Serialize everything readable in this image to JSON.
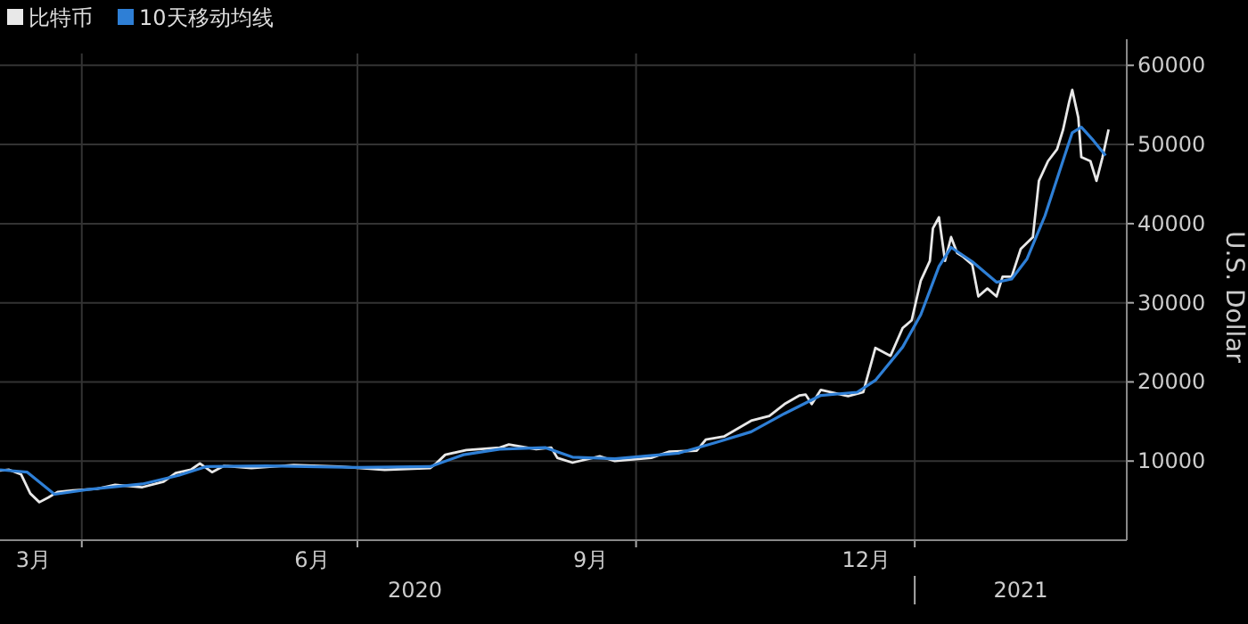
{
  "chart_data": {
    "type": "line",
    "ylabel": "U.S. Dollar",
    "legend": "top left",
    "grid": true,
    "xlim": [
      "2020-03-05",
      "2021-03-12"
    ],
    "ylim": [
      0,
      61500
    ],
    "xticks": [
      {
        "value": "2020-03-16",
        "label": "3月"
      },
      {
        "value": "2020-04-01",
        "label": null
      },
      {
        "value": "2020-06-16",
        "label": "6月"
      },
      {
        "value": "2020-07-01",
        "label": null
      },
      {
        "value": "2020-09-16",
        "label": "9月"
      },
      {
        "value": "2020-10-01",
        "label": null
      },
      {
        "value": "2020-12-16",
        "label": "12月"
      },
      {
        "value": "2021-01-01",
        "label": null
      }
    ],
    "x2lim": [
      "2020-03-05",
      "2021-03-12"
    ],
    "x2ticks": [
      {
        "value": "2020-07-20",
        "label": "2020"
      },
      {
        "value": "2021-01-01",
        "label": null
      },
      {
        "value": "2021-02-05",
        "label": "2021"
      }
    ],
    "yticks": [
      10000,
      20000,
      30000,
      40000,
      50000,
      60000
    ],
    "series": [
      {
        "name": "比特币",
        "color": "#e8e8e8",
        "x": [
          "2020-03-05",
          "2020-03-08",
          "2020-03-12",
          "2020-03-15",
          "2020-03-18",
          "2020-03-21",
          "2020-03-24",
          "2020-03-29",
          "2020-04-06",
          "2020-04-12",
          "2020-04-21",
          "2020-04-28",
          "2020-05-02",
          "2020-05-07",
          "2020-05-10",
          "2020-05-14",
          "2020-05-18",
          "2020-05-27",
          "2020-06-10",
          "2020-06-25",
          "2020-07-10",
          "2020-07-25",
          "2020-07-27",
          "2020-07-30",
          "2020-08-06",
          "2020-08-17",
          "2020-08-20",
          "2020-08-29",
          "2020-09-03",
          "2020-09-05",
          "2020-09-10",
          "2020-09-19",
          "2020-09-24",
          "2020-10-06",
          "2020-10-12",
          "2020-10-21",
          "2020-10-24",
          "2020-10-30",
          "2020-11-08",
          "2020-11-14",
          "2020-11-19",
          "2020-11-24",
          "2020-11-26",
          "2020-11-28",
          "2020-12-01",
          "2020-12-10",
          "2020-12-15",
          "2020-12-19",
          "2020-12-24",
          "2020-12-28",
          "2020-12-31",
          "2021-01-03",
          "2021-01-06",
          "2021-01-07",
          "2021-01-09",
          "2021-01-11",
          "2021-01-13",
          "2021-01-15",
          "2021-01-17",
          "2021-01-20",
          "2021-01-22",
          "2021-01-25",
          "2021-01-28",
          "2021-01-30",
          "2021-02-02",
          "2021-02-05",
          "2021-02-09",
          "2021-02-11",
          "2021-02-14",
          "2021-02-17",
          "2021-02-19",
          "2021-02-21",
          "2021-02-22",
          "2021-02-24",
          "2021-02-25",
          "2021-02-28",
          "2021-03-02",
          "2021-03-04",
          "2021-03-06"
        ],
        "values": [
          8800,
          8900,
          8300,
          5900,
          4800,
          5400,
          6100,
          6300,
          6500,
          7000,
          6700,
          7400,
          8500,
          8900,
          9700,
          8600,
          9400,
          9100,
          9500,
          9300,
          8900,
          9100,
          9700,
          10800,
          11400,
          11700,
          12100,
          11500,
          11700,
          10400,
          9800,
          10600,
          10000,
          10400,
          11200,
          11300,
          12700,
          13100,
          15100,
          15700,
          17200,
          18300,
          18400,
          17200,
          19000,
          18200,
          18700,
          24300,
          23300,
          26800,
          27800,
          32800,
          35300,
          39400,
          40800,
          35300,
          38300,
          36300,
          35800,
          34800,
          30800,
          31800,
          30800,
          33300,
          33300,
          36800,
          38300,
          45400,
          47900,
          49400,
          51900,
          55400,
          56900,
          53400,
          48400,
          47900,
          45400,
          48400,
          51900
        ]
      },
      {
        "name": "10天移动均线",
        "color": "#2e7fd6",
        "x": [
          "2020-03-05",
          "2020-03-14",
          "2020-03-23",
          "2020-04-03",
          "2020-04-21",
          "2020-05-03",
          "2020-05-12",
          "2020-06-01",
          "2020-07-01",
          "2020-07-25",
          "2020-08-05",
          "2020-08-17",
          "2020-09-01",
          "2020-09-10",
          "2020-09-24",
          "2020-10-15",
          "2020-10-27",
          "2020-11-08",
          "2020-11-19",
          "2020-12-01",
          "2020-12-13",
          "2020-12-19",
          "2020-12-28",
          "2021-01-03",
          "2021-01-09",
          "2021-01-13",
          "2021-01-20",
          "2021-01-28",
          "2021-02-02",
          "2021-02-07",
          "2021-02-13",
          "2021-02-19",
          "2021-02-22",
          "2021-02-25",
          "2021-03-01",
          "2021-03-05"
        ],
        "values": [
          8900,
          8600,
          5800,
          6400,
          7100,
          8200,
          9300,
          9400,
          9200,
          9300,
          10800,
          11500,
          11700,
          10500,
          10300,
          11000,
          12300,
          13700,
          16000,
          18300,
          18700,
          20200,
          24400,
          28500,
          34600,
          37000,
          35200,
          32600,
          33000,
          35500,
          41000,
          48000,
          51500,
          52200,
          50500,
          48600
        ]
      }
    ]
  }
}
